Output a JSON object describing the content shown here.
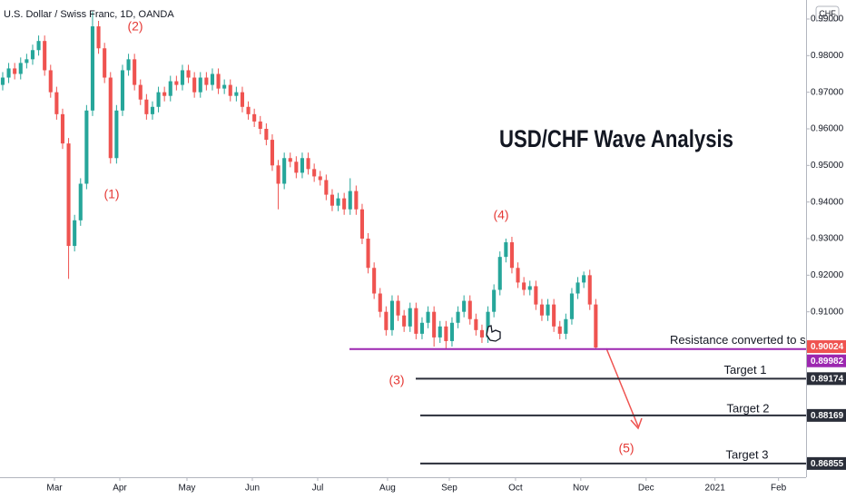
{
  "chart_data": {
    "type": "candlestick",
    "header": "U.S. Dollar / Swiss Franc, 1D, OANDA",
    "currency": "CHF",
    "title": "USD/CHF Wave Analysis",
    "up_color": "#26a69a",
    "down_color": "#ef5350",
    "last_price_color": "#ef5350",
    "candles": [
      [
        0.972,
        0.9755,
        0.9705,
        0.974
      ],
      [
        0.974,
        0.978,
        0.9725,
        0.9765
      ],
      [
        0.9765,
        0.978,
        0.9735,
        0.975
      ],
      [
        0.975,
        0.9795,
        0.9735,
        0.978
      ],
      [
        0.978,
        0.9805,
        0.9765,
        0.979
      ],
      [
        0.979,
        0.983,
        0.9775,
        0.9815
      ],
      [
        0.9815,
        0.9855,
        0.98,
        0.984
      ],
      [
        0.984,
        0.9855,
        0.9745,
        0.976
      ],
      [
        0.976,
        0.9775,
        0.9685,
        0.97
      ],
      [
        0.97,
        0.9715,
        0.9625,
        0.964
      ],
      [
        0.964,
        0.9655,
        0.9545,
        0.956
      ],
      [
        0.956,
        0.9575,
        0.919,
        0.928
      ],
      [
        0.928,
        0.9365,
        0.9265,
        0.935
      ],
      [
        0.935,
        0.9465,
        0.9335,
        0.945
      ],
      [
        0.945,
        0.9665,
        0.9435,
        0.965
      ],
      [
        0.965,
        0.992,
        0.9635,
        0.988
      ],
      [
        0.988,
        0.9895,
        0.9805,
        0.982
      ],
      [
        0.982,
        0.9835,
        0.9725,
        0.974
      ],
      [
        0.974,
        0.9755,
        0.9505,
        0.952
      ],
      [
        0.952,
        0.9665,
        0.9505,
        0.965
      ],
      [
        0.965,
        0.9775,
        0.9635,
        0.976
      ],
      [
        0.976,
        0.9805,
        0.9745,
        0.979
      ],
      [
        0.979,
        0.9805,
        0.9705,
        0.972
      ],
      [
        0.972,
        0.9735,
        0.9665,
        0.968
      ],
      [
        0.968,
        0.9695,
        0.9625,
        0.964
      ],
      [
        0.964,
        0.9675,
        0.9625,
        0.966
      ],
      [
        0.966,
        0.9715,
        0.9645,
        0.97
      ],
      [
        0.97,
        0.9715,
        0.9675,
        0.969
      ],
      [
        0.969,
        0.9745,
        0.9675,
        0.973
      ],
      [
        0.973,
        0.9745,
        0.9705,
        0.972
      ],
      [
        0.972,
        0.9775,
        0.9705,
        0.976
      ],
      [
        0.976,
        0.9775,
        0.9725,
        0.974
      ],
      [
        0.974,
        0.9755,
        0.9685,
        0.97
      ],
      [
        0.97,
        0.9755,
        0.9685,
        0.974
      ],
      [
        0.974,
        0.9755,
        0.9705,
        0.972
      ],
      [
        0.972,
        0.9765,
        0.9705,
        0.975
      ],
      [
        0.975,
        0.9765,
        0.9695,
        0.971
      ],
      [
        0.971,
        0.9735,
        0.9695,
        0.972
      ],
      [
        0.972,
        0.9735,
        0.9675,
        0.969
      ],
      [
        0.969,
        0.9715,
        0.9675,
        0.97
      ],
      [
        0.97,
        0.9715,
        0.9645,
        0.966
      ],
      [
        0.966,
        0.9675,
        0.9625,
        0.964
      ],
      [
        0.964,
        0.9655,
        0.9605,
        0.962
      ],
      [
        0.962,
        0.9635,
        0.9585,
        0.96
      ],
      [
        0.96,
        0.9615,
        0.9555,
        0.957
      ],
      [
        0.957,
        0.9585,
        0.9485,
        0.95
      ],
      [
        0.95,
        0.9515,
        0.938,
        0.945
      ],
      [
        0.945,
        0.9535,
        0.9435,
        0.952
      ],
      [
        0.952,
        0.9535,
        0.9495,
        0.951
      ],
      [
        0.951,
        0.9525,
        0.9465,
        0.948
      ],
      [
        0.948,
        0.9535,
        0.9465,
        0.952
      ],
      [
        0.952,
        0.9535,
        0.9475,
        0.949
      ],
      [
        0.949,
        0.9505,
        0.9455,
        0.947
      ],
      [
        0.947,
        0.9485,
        0.9445,
        0.946
      ],
      [
        0.946,
        0.9475,
        0.9405,
        0.942
      ],
      [
        0.942,
        0.9435,
        0.9375,
        0.939
      ],
      [
        0.939,
        0.9425,
        0.9375,
        0.941
      ],
      [
        0.941,
        0.9425,
        0.9365,
        0.938
      ],
      [
        0.938,
        0.9465,
        0.9365,
        0.943
      ],
      [
        0.943,
        0.9445,
        0.9365,
        0.938
      ],
      [
        0.938,
        0.9395,
        0.9285,
        0.93
      ],
      [
        0.93,
        0.9315,
        0.9205,
        0.922
      ],
      [
        0.922,
        0.9235,
        0.9135,
        0.915
      ],
      [
        0.915,
        0.9165,
        0.9085,
        0.91
      ],
      [
        0.91,
        0.9115,
        0.9035,
        0.905
      ],
      [
        0.905,
        0.9145,
        0.9035,
        0.913
      ],
      [
        0.913,
        0.9145,
        0.9075,
        0.909
      ],
      [
        0.909,
        0.9105,
        0.9045,
        0.906
      ],
      [
        0.906,
        0.9125,
        0.9045,
        0.911
      ],
      [
        0.911,
        0.9125,
        0.9025,
        0.904
      ],
      [
        0.904,
        0.9085,
        0.9025,
        0.907
      ],
      [
        0.907,
        0.9115,
        0.9055,
        0.91
      ],
      [
        0.91,
        0.9115,
        0.9005,
        0.903
      ],
      [
        0.903,
        0.9075,
        0.9015,
        0.906
      ],
      [
        0.906,
        0.9075,
        0.9,
        0.902
      ],
      [
        0.902,
        0.9085,
        0.9005,
        0.907
      ],
      [
        0.907,
        0.9115,
        0.9055,
        0.91
      ],
      [
        0.91,
        0.9145,
        0.9085,
        0.913
      ],
      [
        0.913,
        0.9145,
        0.9065,
        0.908
      ],
      [
        0.908,
        0.9095,
        0.9035,
        0.905
      ],
      [
        0.905,
        0.9065,
        0.9015,
        0.903
      ],
      [
        0.903,
        0.9115,
        0.9015,
        0.91
      ],
      [
        0.91,
        0.9175,
        0.9085,
        0.916
      ],
      [
        0.916,
        0.9265,
        0.9145,
        0.925
      ],
      [
        0.925,
        0.93,
        0.9235,
        0.929
      ],
      [
        0.929,
        0.9305,
        0.9205,
        0.922
      ],
      [
        0.922,
        0.9235,
        0.9165,
        0.918
      ],
      [
        0.918,
        0.9195,
        0.9145,
        0.916
      ],
      [
        0.916,
        0.9185,
        0.9145,
        0.917
      ],
      [
        0.917,
        0.9185,
        0.9105,
        0.912
      ],
      [
        0.912,
        0.9135,
        0.9075,
        0.909
      ],
      [
        0.909,
        0.9135,
        0.9075,
        0.912
      ],
      [
        0.912,
        0.9135,
        0.9045,
        0.906
      ],
      [
        0.906,
        0.9075,
        0.9025,
        0.904
      ],
      [
        0.904,
        0.9095,
        0.9025,
        0.908
      ],
      [
        0.908,
        0.9165,
        0.9065,
        0.915
      ],
      [
        0.915,
        0.9195,
        0.9135,
        0.918
      ],
      [
        0.918,
        0.921,
        0.9165,
        0.92
      ],
      [
        0.92,
        0.9215,
        0.9105,
        0.912
      ],
      [
        0.912,
        0.9135,
        0.8998,
        0.90024
      ]
    ],
    "xlim": [
      -0.45,
      134.1
    ],
    "xticks": [
      {
        "value": 8.64,
        "label": "Mar"
      },
      {
        "value": 19.55,
        "label": "Apr"
      },
      {
        "value": 30.76,
        "label": "May"
      },
      {
        "value": 41.67,
        "label": "Jun"
      },
      {
        "value": 52.58,
        "label": "Jul"
      },
      {
        "value": 64.24,
        "label": "Aug"
      },
      {
        "value": 74.55,
        "label": "Sep"
      },
      {
        "value": 85.6,
        "label": "Oct"
      },
      {
        "value": 96.5,
        "label": "Nov"
      },
      {
        "value": 107.4,
        "label": "Dec"
      },
      {
        "value": 118.9,
        "label": "2021"
      },
      {
        "value": 129.5,
        "label": "Feb"
      }
    ],
    "ylim": [
      0.8648,
      0.9952
    ],
    "yticks": [
      {
        "value": 0.99,
        "label": "0.99000"
      },
      {
        "value": 0.98,
        "label": "0.98000"
      },
      {
        "value": 0.97,
        "label": "0.97000"
      },
      {
        "value": 0.96,
        "label": "0.96000"
      },
      {
        "value": 0.95,
        "label": "0.95000"
      },
      {
        "value": 0.94,
        "label": "0.94000"
      },
      {
        "value": 0.93,
        "label": "0.93000"
      },
      {
        "value": 0.92,
        "label": "0.92000"
      },
      {
        "value": 0.91,
        "label": "0.91000"
      }
    ],
    "levels": [
      {
        "label": "Resistance converted to sup",
        "value": 0.89982,
        "color": "#9c27b0"
      },
      {
        "label": "Target 1",
        "value": 0.89174,
        "color": "#2a2e39"
      },
      {
        "label": "Target 2",
        "value": 0.88169,
        "color": "#2a2e39"
      },
      {
        "label": "Target 3",
        "value": 0.86855,
        "color": "#2a2e39"
      }
    ],
    "waves": [
      "(1)",
      "(2)",
      "(3)",
      "(4)",
      "(5)"
    ]
  }
}
